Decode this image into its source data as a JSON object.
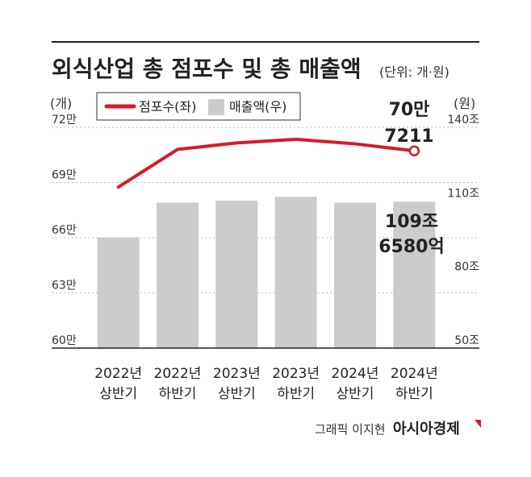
{
  "chart_data": {
    "type": "bar",
    "title": "외식산업 총 점포수 및 총 매출액",
    "unit_note": "(단위: 개·원)",
    "left_axis_unit": "(개)",
    "right_axis_unit": "(원)",
    "categories": [
      [
        "2022년",
        "상반기"
      ],
      [
        "2022년",
        "하반기"
      ],
      [
        "2023년",
        "상반기"
      ],
      [
        "2023년",
        "하반기"
      ],
      [
        "2024년",
        "상반기"
      ],
      [
        "2024년",
        "하반기"
      ]
    ],
    "left_ticks": [
      "72만",
      "69만",
      "66만",
      "63만",
      "60만"
    ],
    "right_ticks": [
      "140조",
      "110조",
      "80조",
      "50조"
    ],
    "left_range": [
      600000,
      720000
    ],
    "right_range": [
      500000,
      1400000
    ],
    "series": [
      {
        "name": "매출액(우)",
        "kind": "bar",
        "axis": "right",
        "color": "#cccccc",
        "values": [
          951000,
          1093000,
          1101000,
          1117000,
          1093000,
          1096580
        ]
      },
      {
        "name": "점포수(좌)",
        "kind": "line",
        "axis": "left",
        "color": "#d7192c",
        "values": [
          687500,
          708000,
          711500,
          713500,
          711000,
          707211
        ]
      }
    ],
    "annotations": {
      "stores_last": [
        "70만",
        "7211"
      ],
      "sales_last": [
        "109조",
        "6580억"
      ]
    },
    "grid": true,
    "legend_position": "top"
  },
  "credit": {
    "label": "그래픽 이지현",
    "brand": "아시아경제"
  }
}
